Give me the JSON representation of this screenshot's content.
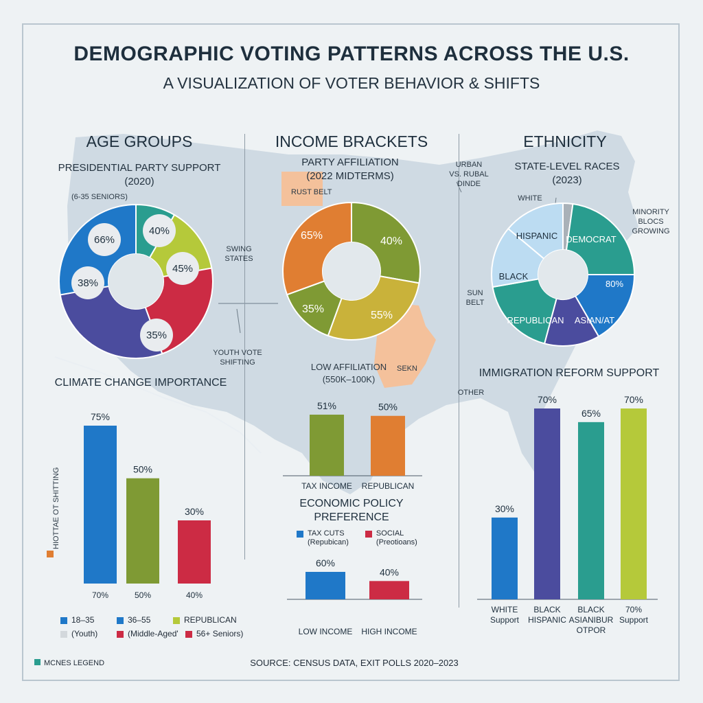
{
  "header": {
    "title": "DEMOGRAPHIC VOTING PATTERNS ACROSS THE U.S.",
    "subtitle": "A VISUALIZATION OF VOTER BEHAVIOR & SHIFTS"
  },
  "sections": {
    "age": "AGE GROUPS",
    "income": "INCOME BRACKETS",
    "ethnicity": "ETHNICITY"
  },
  "map_notes": {
    "swing": "SWING\nSTATES",
    "youth": "YOUTH VOTE\nSHIFTING",
    "urban": "URBAN\nVS. RUBAL\nDINDE",
    "sun": "SUN\nBELT",
    "other": "OTHER",
    "minority": "MINORITY\nBLOCS\nGROWING",
    "rust": "RUST BELT",
    "sekn": "SEKN"
  },
  "colors": {
    "teal": "#2a9d8f",
    "blue": "#1f78c8",
    "olive": "#7f9a34",
    "lime": "#b5c93a",
    "red": "#cc2b44",
    "indigo": "#4b4c9e",
    "orange": "#e07e32",
    "mustard": "#c9b23a",
    "lightblue": "#bcdcf2",
    "grey": "#a9b1b8",
    "map": "#c4d1de",
    "peach": "#f4c19b"
  },
  "age_donut": {
    "title": "PRESIDENTIAL PARTY SUPPORT",
    "year": "(2020)",
    "tag": "(6-35 SENIORS)",
    "labels": [
      "66%",
      "40%",
      "45%",
      "35%",
      "38%"
    ]
  },
  "income_donut": {
    "title": "PARTY AFFILIATION",
    "year": "(2022 MIDTERMS)",
    "labels": [
      "65%",
      "40%",
      "55%",
      "35%"
    ],
    "note1": "LOW AFFILIATION",
    "note2": "(550K–100K)"
  },
  "eth_donut": {
    "title": "STATE-LEVEL RACES",
    "year": "(2023)",
    "labels": [
      "DEMOCRAT",
      "80%",
      "ASIAN/AT",
      "REPUBLICAN",
      "BLACK",
      "HISPANIC"
    ],
    "white": "WHITE"
  },
  "chart_data": [
    {
      "type": "bar",
      "title": "CLIMATE CHANGE IMPORTANCE",
      "ylabel": "HIOTTAE OT SHITTING",
      "values": [
        75,
        50,
        30
      ],
      "data_labels": [
        "75%",
        "50%",
        "30%"
      ],
      "categories": [
        "70%",
        "50%",
        "40%"
      ],
      "colors": [
        "#1f78c8",
        "#7f9a34",
        "#cc2b44"
      ],
      "ylim": [
        0,
        75
      ],
      "legend": [
        {
          "label": "18–35",
          "color": "#1f78c8"
        },
        {
          "label": "36–55",
          "color": "#1f78c8"
        },
        {
          "label": "REPUBLICAN",
          "color": "#b5c93a"
        },
        {
          "label": "(Youth)",
          "color": "#d3d8dc"
        },
        {
          "label": "(Middle-Aged'",
          "color": "#cc2b44"
        },
        {
          "label": "56+ Seniors)",
          "color": "#cc2b44"
        }
      ]
    },
    {
      "type": "bar",
      "title": "",
      "values": [
        51,
        50
      ],
      "data_labels": [
        "51%",
        "50%"
      ],
      "categories": [
        "TAX INCOME",
        "REPUBLICAN"
      ],
      "colors": [
        "#7f9a34",
        "#e07e32"
      ],
      "ylim": [
        0,
        51
      ]
    },
    {
      "type": "bar",
      "title": "ECONOMIC POLICY\nPREFERENCE",
      "values": [
        60,
        40
      ],
      "data_labels": [
        "60%",
        "40%"
      ],
      "categories": [
        "LOW INCOME",
        "HIGH INCOME"
      ],
      "colors": [
        "#1f78c8",
        "#cc2b44"
      ],
      "ylim": [
        0,
        60
      ],
      "legend": [
        {
          "label": "TAX CUTS\n(Repubican)",
          "color": "#1f78c8"
        },
        {
          "label": "SOCIAL\n(Preotioans)",
          "color": "#cc2b44"
        }
      ]
    },
    {
      "type": "bar",
      "title": "IMMIGRATION REFORM SUPPORT",
      "values": [
        30,
        70,
        65,
        70
      ],
      "data_labels": [
        "30%",
        "70%",
        "65%",
        "70%"
      ],
      "categories": [
        "WHITE\nSupport",
        "BLACK\nHISPANIC",
        "BLACK\nASIANIBUR\nOTPOR",
        "70%\nSupport"
      ],
      "colors": [
        "#1f78c8",
        "#4b4c9e",
        "#2a9d8f",
        "#b5c93a"
      ],
      "ylim": [
        0,
        70
      ]
    }
  ],
  "footer": {
    "legend": "MCNES LEGEND",
    "source": "SOURCE: CENSUS DATA, EXIT POLLS 2020–2023"
  }
}
